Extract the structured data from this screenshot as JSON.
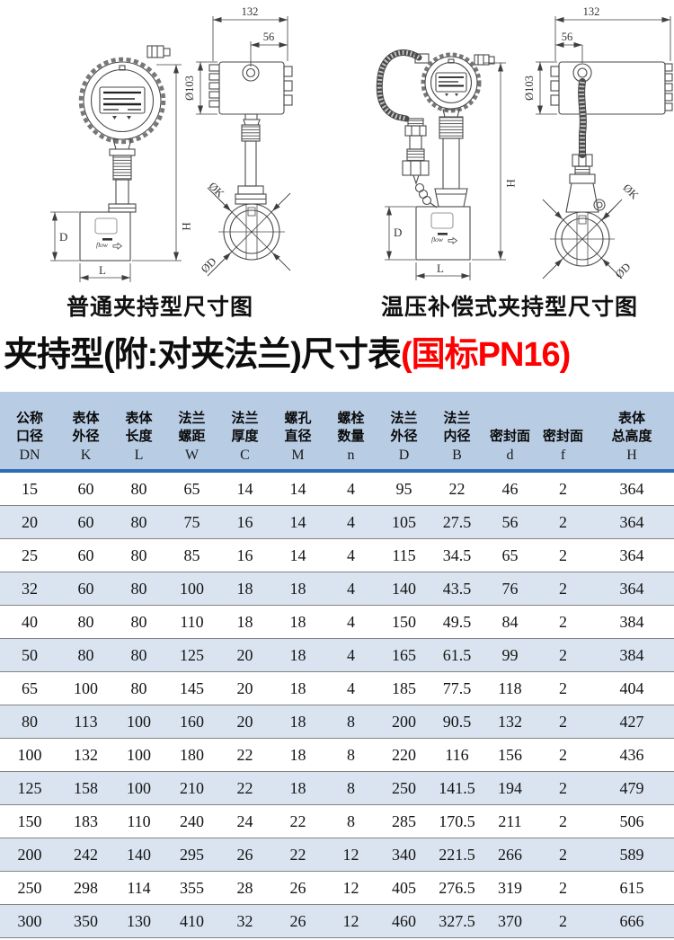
{
  "diagrams": {
    "left": {
      "caption": "普通夹持型尺寸图",
      "flow_label": "flow",
      "dims": {
        "head_width": "132",
        "conduit_offset": "56",
        "head_diameter": "Ø103",
        "total_height": "H",
        "body_height": "D",
        "body_length": "L",
        "outer_diameter": "ØK",
        "bore_diameter": "ØD"
      }
    },
    "right": {
      "caption": "温压补偿式夹持型尺寸图",
      "flow_label": "flow",
      "dims": {
        "head_width": "132",
        "conduit_offset": "56",
        "head_diameter": "Ø103",
        "total_height": "H",
        "body_height": "D",
        "body_length": "L",
        "outer_diameter": "ØK",
        "bore_diameter": "ØD"
      }
    }
  },
  "title": {
    "black": "夹持型(附:对夹法兰)尺寸表",
    "red": "(国标PN16)"
  },
  "table": {
    "header_bg": "#b8cce4",
    "row_alt_bg": "#dae4f0",
    "divider_color": "#2e6cb5",
    "columns": [
      {
        "name": [
          "公称",
          "口径"
        ],
        "symbol": "DN"
      },
      {
        "name": [
          "表体",
          "外径"
        ],
        "symbol": "K"
      },
      {
        "name": [
          "表体",
          "长度"
        ],
        "symbol": "L"
      },
      {
        "name": [
          "法兰",
          "螺距"
        ],
        "symbol": "W"
      },
      {
        "name": [
          "法兰",
          "厚度"
        ],
        "symbol": "C"
      },
      {
        "name": [
          "螺孔",
          "直径"
        ],
        "symbol": "M"
      },
      {
        "name": [
          "螺栓",
          "数量"
        ],
        "symbol": "n"
      },
      {
        "name": [
          "法兰",
          "外径"
        ],
        "symbol": "D"
      },
      {
        "name": [
          "法兰",
          "内径"
        ],
        "symbol": "B"
      },
      {
        "name": [
          "密封面"
        ],
        "symbol": "d"
      },
      {
        "name": [
          "密封面"
        ],
        "symbol": "f"
      },
      {
        "name": [
          "表体",
          "总高度"
        ],
        "symbol": "H"
      }
    ],
    "rows": [
      [
        "15",
        "60",
        "80",
        "65",
        "14",
        "14",
        "4",
        "95",
        "22",
        "46",
        "2",
        "364"
      ],
      [
        "20",
        "60",
        "80",
        "75",
        "16",
        "14",
        "4",
        "105",
        "27.5",
        "56",
        "2",
        "364"
      ],
      [
        "25",
        "60",
        "80",
        "85",
        "16",
        "14",
        "4",
        "115",
        "34.5",
        "65",
        "2",
        "364"
      ],
      [
        "32",
        "60",
        "80",
        "100",
        "18",
        "18",
        "4",
        "140",
        "43.5",
        "76",
        "2",
        "364"
      ],
      [
        "40",
        "80",
        "80",
        "110",
        "18",
        "18",
        "4",
        "150",
        "49.5",
        "84",
        "2",
        "384"
      ],
      [
        "50",
        "80",
        "80",
        "125",
        "20",
        "18",
        "4",
        "165",
        "61.5",
        "99",
        "2",
        "384"
      ],
      [
        "65",
        "100",
        "80",
        "145",
        "20",
        "18",
        "4",
        "185",
        "77.5",
        "118",
        "2",
        "404"
      ],
      [
        "80",
        "113",
        "100",
        "160",
        "20",
        "18",
        "8",
        "200",
        "90.5",
        "132",
        "2",
        "427"
      ],
      [
        "100",
        "132",
        "100",
        "180",
        "22",
        "18",
        "8",
        "220",
        "116",
        "156",
        "2",
        "436"
      ],
      [
        "125",
        "158",
        "100",
        "210",
        "22",
        "18",
        "8",
        "250",
        "141.5",
        "194",
        "2",
        "479"
      ],
      [
        "150",
        "183",
        "110",
        "240",
        "24",
        "22",
        "8",
        "285",
        "170.5",
        "211",
        "2",
        "506"
      ],
      [
        "200",
        "242",
        "140",
        "295",
        "26",
        "22",
        "12",
        "340",
        "221.5",
        "266",
        "2",
        "589"
      ],
      [
        "250",
        "298",
        "114",
        "355",
        "28",
        "26",
        "12",
        "405",
        "276.5",
        "319",
        "2",
        "615"
      ],
      [
        "300",
        "350",
        "130",
        "410",
        "32",
        "26",
        "12",
        "460",
        "327.5",
        "370",
        "2",
        "666"
      ]
    ]
  }
}
